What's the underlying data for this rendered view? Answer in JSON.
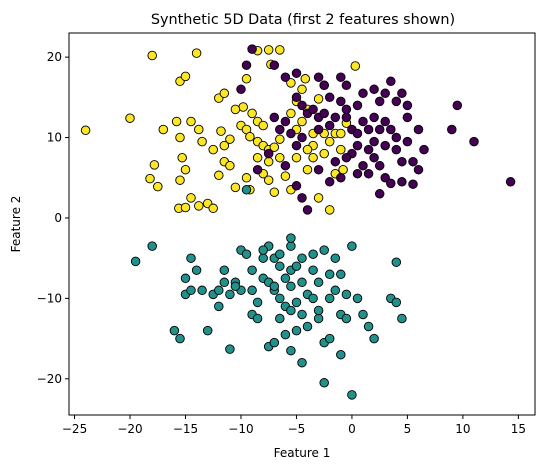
{
  "chart_data": {
    "type": "scatter",
    "title": "Synthetic 5D Data (first 2 features shown)",
    "xlabel": "Feature 1",
    "ylabel": "Feature 2",
    "xlim": [
      -25.5,
      16.5
    ],
    "ylim": [
      -24.5,
      23.0
    ],
    "xticks": [
      -25,
      -20,
      -15,
      -10,
      -5,
      0,
      5,
      10,
      15
    ],
    "yticks": [
      -20,
      -10,
      0,
      10,
      20
    ],
    "grid": false,
    "legend": "none",
    "series": [
      {
        "color": "#fde725",
        "points": [
          [
            -24.0,
            10.9
          ],
          [
            -20.0,
            12.4
          ],
          [
            -18.0,
            20.2
          ],
          [
            -17.0,
            11.0
          ],
          [
            -17.8,
            6.6
          ],
          [
            -18.2,
            4.9
          ],
          [
            -17.5,
            3.9
          ],
          [
            -15.5,
            17.0
          ],
          [
            -15.0,
            17.6
          ],
          [
            -14.0,
            20.5
          ],
          [
            -15.8,
            12.0
          ],
          [
            -15.5,
            10.0
          ],
          [
            -15.3,
            7.5
          ],
          [
            -15.0,
            6.0
          ],
          [
            -15.5,
            4.7
          ],
          [
            -15.6,
            1.2
          ],
          [
            -15.0,
            1.3
          ],
          [
            -14.5,
            2.5
          ],
          [
            -13.8,
            1.5
          ],
          [
            -13.0,
            1.8
          ],
          [
            -12.5,
            1.2
          ],
          [
            -14.5,
            12.0
          ],
          [
            -13.8,
            11.0
          ],
          [
            -13.5,
            9.5
          ],
          [
            -12.5,
            8.5
          ],
          [
            -11.5,
            7.0
          ],
          [
            -11.0,
            6.5
          ],
          [
            -12.0,
            5.3
          ],
          [
            -11.8,
            10.8
          ],
          [
            -11.0,
            9.8
          ],
          [
            -11.5,
            9.0
          ],
          [
            -12.0,
            14.9
          ],
          [
            -11.5,
            15.5
          ],
          [
            -9.5,
            17.3
          ],
          [
            -9.8,
            13.8
          ],
          [
            -9.0,
            13.0
          ],
          [
            -10.0,
            11.5
          ],
          [
            -9.5,
            11.0
          ],
          [
            -8.5,
            12.0
          ],
          [
            -8.0,
            11.5
          ],
          [
            -9.2,
            10.1
          ],
          [
            -8.5,
            9.5
          ],
          [
            -8.0,
            9.0
          ],
          [
            -7.5,
            8.5
          ],
          [
            -7.0,
            8.8
          ],
          [
            -8.5,
            7.5
          ],
          [
            -7.5,
            7.0
          ],
          [
            -6.5,
            7.5
          ],
          [
            -10.5,
            3.8
          ],
          [
            -9.5,
            5.0
          ],
          [
            -9.2,
            3.5
          ],
          [
            -8.0,
            5.5
          ],
          [
            -7.5,
            4.7
          ],
          [
            -7.0,
            3.2
          ],
          [
            -6.0,
            5.2
          ],
          [
            -5.5,
            3.5
          ],
          [
            -10.5,
            13.5
          ],
          [
            -8.5,
            20.8
          ],
          [
            -7.5,
            20.9
          ],
          [
            -6.5,
            20.9
          ],
          [
            -7.3,
            19.1
          ],
          [
            -5.5,
            16.8
          ],
          [
            -4.2,
            17.3
          ],
          [
            -4.5,
            16.0
          ],
          [
            -5.0,
            14.5
          ],
          [
            -5.5,
            13.0
          ],
          [
            -5.0,
            11.0
          ],
          [
            -4.5,
            12.0
          ],
          [
            -3.5,
            10.5
          ],
          [
            -3.5,
            9.0
          ],
          [
            -2.5,
            10.5
          ],
          [
            -2.0,
            9.5
          ],
          [
            -2.5,
            8.0
          ],
          [
            -1.5,
            10.5
          ],
          [
            -1.0,
            10.5
          ],
          [
            -1.0,
            8.5
          ],
          [
            -5.0,
            7.5
          ],
          [
            -4.0,
            8.5
          ],
          [
            -3.5,
            7.5
          ],
          [
            -4.0,
            6.0
          ],
          [
            -1.5,
            5.5
          ],
          [
            -0.8,
            6.0
          ],
          [
            -3.0,
            2.5
          ],
          [
            -2.0,
            1.0
          ],
          [
            -0.5,
            11.8
          ],
          [
            0.3,
            18.9
          ],
          [
            -2.5,
            16.5
          ],
          [
            -4.0,
            13.5
          ],
          [
            -3.0,
            14.8
          ],
          [
            -6.5,
            9.8
          ]
        ]
      },
      {
        "color": "#440154",
        "points": [
          [
            -9.0,
            21.0
          ],
          [
            -7.0,
            19.0
          ],
          [
            -6.0,
            17.5
          ],
          [
            -5.0,
            18.0
          ],
          [
            -3.0,
            17.5
          ],
          [
            -2.5,
            16.5
          ],
          [
            -2.0,
            15.0
          ],
          [
            -1.0,
            17.5
          ],
          [
            -1.0,
            14.5
          ],
          [
            -0.5,
            16.5
          ],
          [
            0.5,
            14.0
          ],
          [
            1.0,
            15.5
          ],
          [
            2.0,
            16.0
          ],
          [
            2.5,
            14.5
          ],
          [
            3.0,
            15.5
          ],
          [
            3.5,
            17.0
          ],
          [
            4.0,
            14.5
          ],
          [
            4.5,
            15.5
          ],
          [
            5.0,
            14.0
          ],
          [
            -5.0,
            15.0
          ],
          [
            -4.5,
            14.0
          ],
          [
            -4.0,
            13.0
          ],
          [
            -3.5,
            13.5
          ],
          [
            -3.0,
            12.5
          ],
          [
            -2.5,
            13.0
          ],
          [
            -6.0,
            12.0
          ],
          [
            -7.0,
            12.5
          ],
          [
            -6.5,
            11.0
          ],
          [
            -5.5,
            10.5
          ],
          [
            -4.5,
            10.0
          ],
          [
            -3.0,
            11.0
          ],
          [
            -2.0,
            11.5
          ],
          [
            -1.5,
            12.5
          ],
          [
            -0.5,
            12.5
          ],
          [
            -0.5,
            13.5
          ],
          [
            0.0,
            11.0
          ],
          [
            0.5,
            10.5
          ],
          [
            1.0,
            12.0
          ],
          [
            1.5,
            11.0
          ],
          [
            2.0,
            12.5
          ],
          [
            2.5,
            11.0
          ],
          [
            3.0,
            12.0
          ],
          [
            3.5,
            11.0
          ],
          [
            4.0,
            10.0
          ],
          [
            5.0,
            12.5
          ],
          [
            6.0,
            11.0
          ],
          [
            6.5,
            8.5
          ],
          [
            5.0,
            9.5
          ],
          [
            4.0,
            8.5
          ],
          [
            3.0,
            9.0
          ],
          [
            2.0,
            9.5
          ],
          [
            1.5,
            8.5
          ],
          [
            0.5,
            9.0
          ],
          [
            0.0,
            8.0
          ],
          [
            -0.5,
            7.5
          ],
          [
            2.0,
            7.5
          ],
          [
            2.5,
            6.5
          ],
          [
            1.5,
            5.5
          ],
          [
            3.0,
            5.0
          ],
          [
            3.5,
            4.3
          ],
          [
            4.5,
            4.5
          ],
          [
            5.5,
            4.2
          ],
          [
            6.0,
            6.0
          ],
          [
            5.5,
            7.0
          ],
          [
            4.5,
            7.0
          ],
          [
            -1.0,
            5.0
          ],
          [
            0.5,
            5.5
          ],
          [
            -5.0,
            4.0
          ],
          [
            -4.5,
            2.5
          ],
          [
            -4.0,
            1.0
          ],
          [
            -7.5,
            8.0
          ],
          [
            -8.5,
            6.0
          ],
          [
            -6.0,
            6.5
          ],
          [
            -5.0,
            9.0
          ],
          [
            -3.0,
            6.0
          ],
          [
            9.5,
            14.0
          ],
          [
            9.0,
            11.0
          ],
          [
            11.0,
            9.5
          ],
          [
            14.3,
            4.5
          ],
          [
            -10.0,
            16.0
          ],
          [
            -9.5,
            19.0
          ],
          [
            -2.0,
            4.5
          ],
          [
            -1.5,
            7.0
          ],
          [
            1.0,
            6.5
          ],
          [
            2.5,
            3.0
          ]
        ]
      },
      {
        "color": "#21918c",
        "points": [
          [
            -19.5,
            -5.4
          ],
          [
            -18.0,
            -3.5
          ],
          [
            -16.0,
            -14.0
          ],
          [
            -15.5,
            -15.0
          ],
          [
            -15.0,
            -9.5
          ],
          [
            -15.0,
            -7.5
          ],
          [
            -14.5,
            -9.0
          ],
          [
            -14.5,
            -5.0
          ],
          [
            -13.0,
            -14.0
          ],
          [
            -12.5,
            -9.5
          ],
          [
            -12.0,
            -9.0
          ],
          [
            -11.5,
            -6.5
          ],
          [
            -11.5,
            -8.0
          ],
          [
            -11.0,
            -9.5
          ],
          [
            -11.0,
            -16.3
          ],
          [
            -10.5,
            -8.0
          ],
          [
            -10.0,
            -4.0
          ],
          [
            -10.0,
            -9.0
          ],
          [
            -9.5,
            -4.5
          ],
          [
            -9.0,
            -6.5
          ],
          [
            -9.0,
            -12.0
          ],
          [
            -8.5,
            -10.5
          ],
          [
            -8.5,
            -12.5
          ],
          [
            -8.0,
            -5.0
          ],
          [
            -8.0,
            -7.5
          ],
          [
            -7.5,
            -3.5
          ],
          [
            -7.5,
            -8.0
          ],
          [
            -7.5,
            -16.0
          ],
          [
            -7.0,
            -5.0
          ],
          [
            -7.0,
            -9.0
          ],
          [
            -7.0,
            -15.5
          ],
          [
            -6.5,
            -4.5
          ],
          [
            -6.5,
            -10.0
          ],
          [
            -6.5,
            -12.5
          ],
          [
            -6.0,
            -7.5
          ],
          [
            -6.0,
            -14.5
          ],
          [
            -5.5,
            -3.5
          ],
          [
            -5.5,
            -6.5
          ],
          [
            -5.5,
            -8.5
          ],
          [
            -5.5,
            -16.5
          ],
          [
            -5.0,
            -6.0
          ],
          [
            -5.0,
            -10.5
          ],
          [
            -5.0,
            -14.0
          ],
          [
            -4.5,
            -5.0
          ],
          [
            -4.5,
            -8.0
          ],
          [
            -4.5,
            -12.0
          ],
          [
            -4.5,
            -18.0
          ],
          [
            -4.0,
            -9.5
          ],
          [
            -4.0,
            -13.5
          ],
          [
            -3.5,
            -4.5
          ],
          [
            -3.5,
            -6.5
          ],
          [
            -3.5,
            -10.0
          ],
          [
            -3.0,
            -8.0
          ],
          [
            -3.0,
            -12.5
          ],
          [
            -2.5,
            -15.5
          ],
          [
            -2.0,
            -7.0
          ],
          [
            -2.0,
            -10.0
          ],
          [
            -2.0,
            -15.0
          ],
          [
            -1.5,
            -5.0
          ],
          [
            -1.0,
            -7.0
          ],
          [
            -1.0,
            -12.0
          ],
          [
            -1.0,
            -17.0
          ],
          [
            -0.5,
            -9.5
          ],
          [
            -0.5,
            -12.5
          ],
          [
            0.0,
            -3.5
          ],
          [
            0.0,
            -22.0
          ],
          [
            0.5,
            -10.0
          ],
          [
            1.0,
            -12.0
          ],
          [
            1.5,
            -13.5
          ],
          [
            2.0,
            -15.0
          ],
          [
            3.5,
            -10.0
          ],
          [
            4.0,
            -10.5
          ],
          [
            4.5,
            -12.5
          ],
          [
            4.0,
            -5.5
          ],
          [
            -2.5,
            -20.5
          ],
          [
            -5.5,
            -2.5
          ],
          [
            -8.0,
            -4.0
          ],
          [
            -13.5,
            -9.0
          ],
          [
            -14.0,
            -6.5
          ],
          [
            -12.0,
            -11.0
          ],
          [
            -9.0,
            -9.0
          ],
          [
            -6.0,
            -11.0
          ],
          [
            -3.0,
            -11.5
          ],
          [
            -1.5,
            -9.0
          ],
          [
            -2.5,
            -4.0
          ],
          [
            -9.5,
            3.5
          ],
          [
            -10.5,
            -8.5
          ],
          [
            -7.0,
            -8.5
          ],
          [
            -6.5,
            -6.0
          ],
          [
            -5.5,
            -11.5
          ]
        ]
      }
    ]
  }
}
